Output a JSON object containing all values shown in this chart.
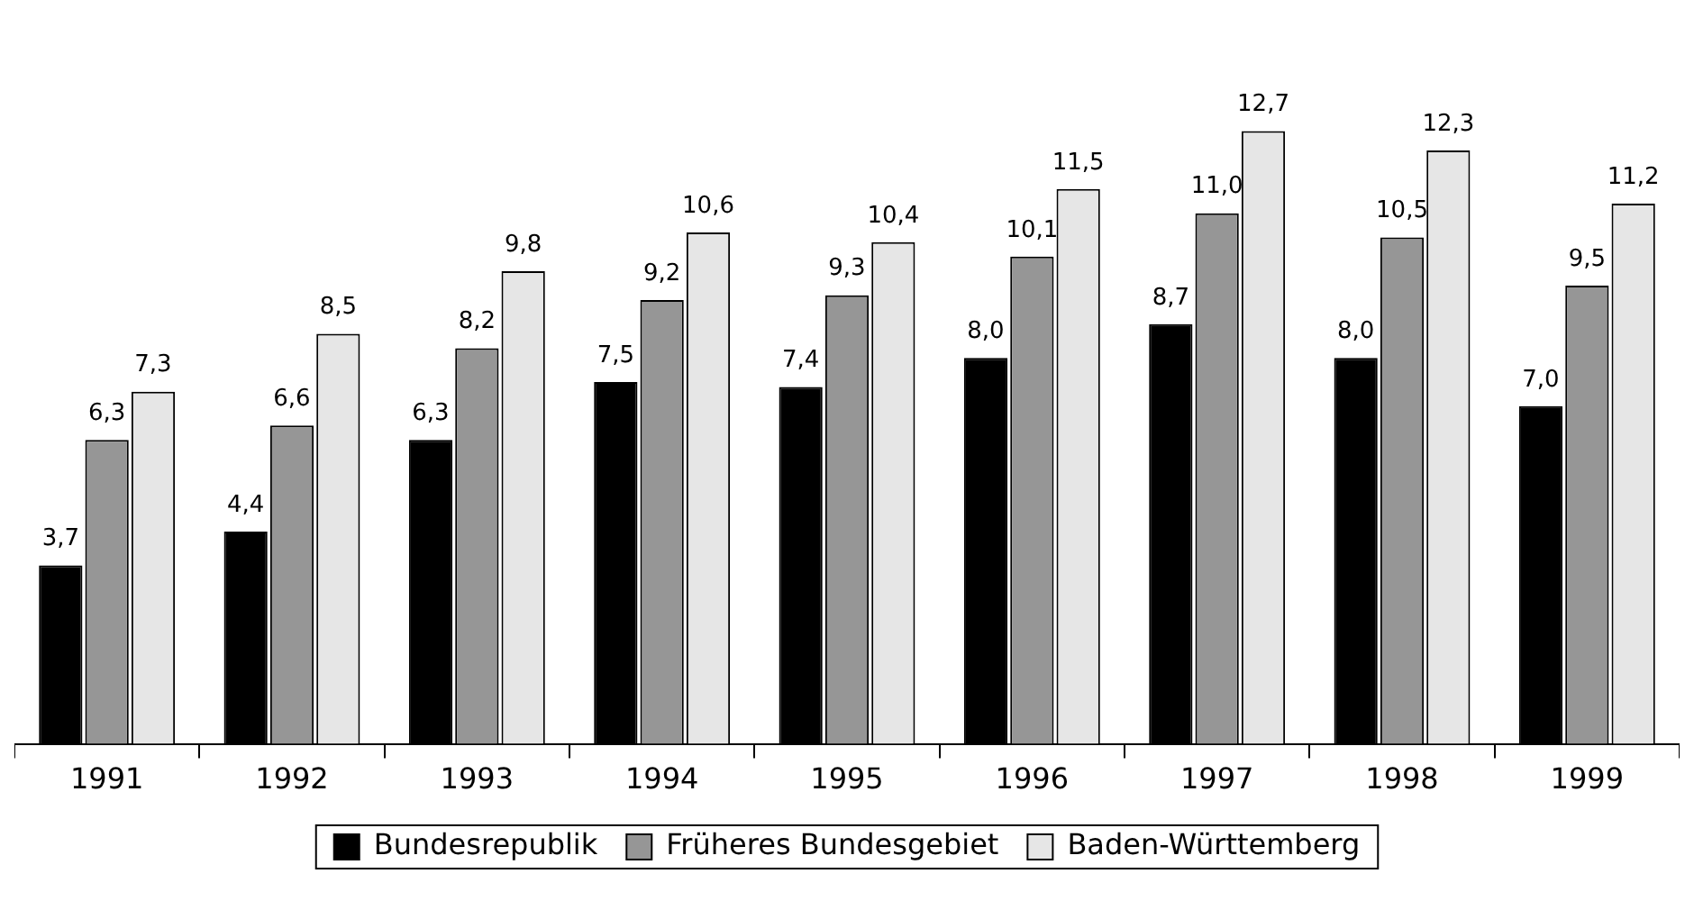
{
  "chart_data": {
    "type": "bar",
    "categories": [
      "1991",
      "1992",
      "1993",
      "1994",
      "1995",
      "1996",
      "1997",
      "1998",
      "1999"
    ],
    "series": [
      {
        "name": "Bundesrepublik",
        "color": "#000000",
        "values": [
          3.7,
          4.4,
          6.3,
          7.5,
          7.4,
          8.0,
          8.7,
          8.0,
          7.0
        ],
        "value_labels": [
          "3,7",
          "4,4",
          "6,3",
          "7,5",
          "7,4",
          "8,0",
          "8,7",
          "8,0",
          "7,0"
        ]
      },
      {
        "name": "Früheres Bundesgebiet",
        "color": "#969696",
        "values": [
          6.3,
          6.6,
          8.2,
          9.2,
          9.3,
          10.1,
          11.0,
          10.5,
          9.5
        ],
        "value_labels": [
          "6,3",
          "6,6",
          "8,2",
          "9,2",
          "9,3",
          "10,1",
          "11,0",
          "10,5",
          "9,5"
        ]
      },
      {
        "name": "Baden-Württemberg",
        "color": "#e6e6e6",
        "values": [
          7.3,
          8.5,
          9.8,
          10.6,
          10.4,
          11.5,
          12.7,
          12.3,
          11.2
        ],
        "value_labels": [
          "7,3",
          "8,5",
          "9,8",
          "10,6",
          "10,4",
          "11,5",
          "12,7",
          "12,3",
          "11,2"
        ]
      }
    ],
    "grid": false,
    "legend": "bottom",
    "tick_labels": "x"
  }
}
